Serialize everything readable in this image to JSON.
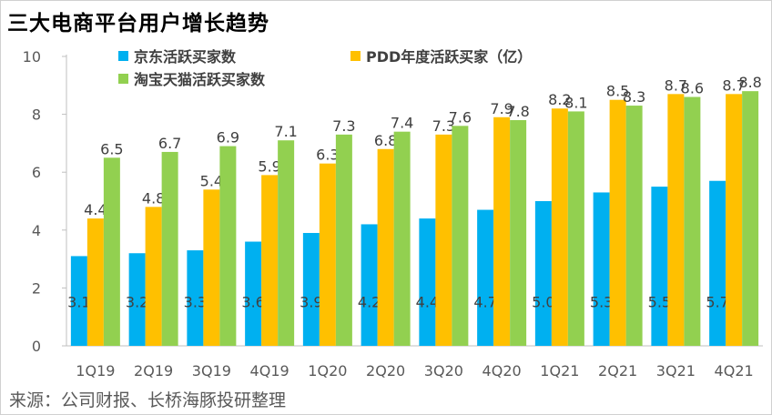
{
  "chart_data": {
    "type": "bar",
    "title": "三大电商平台用户增长趋势",
    "categories": [
      "1Q19",
      "2Q19",
      "3Q19",
      "4Q19",
      "1Q20",
      "2Q20",
      "3Q20",
      "4Q20",
      "1Q21",
      "2Q21",
      "3Q21",
      "4Q21"
    ],
    "series": [
      {
        "name": "京东活跃买家数",
        "color": "#00b0f0",
        "values": [
          3.1,
          3.2,
          3.3,
          3.6,
          3.9,
          4.2,
          4.4,
          4.7,
          5.0,
          5.3,
          5.5,
          5.7
        ],
        "labels": [
          "3.1",
          "3.2",
          "3.3",
          "3.6",
          "3.9",
          "4.2",
          "4.4",
          "4.7",
          "5.0",
          "5.3",
          "5.5",
          "5.7"
        ]
      },
      {
        "name": "PDD年度活跃买家（亿）",
        "color": "#ffc000",
        "values": [
          4.4,
          4.8,
          5.4,
          5.9,
          6.3,
          6.8,
          7.3,
          7.9,
          8.2,
          8.5,
          8.7,
          8.7
        ],
        "labels": [
          "4.4",
          "4.8",
          "5.4",
          "5.9",
          "6.3",
          "6.8",
          "7.3",
          "7.9",
          "8.2",
          "8.5",
          "8.7",
          "8.7"
        ]
      },
      {
        "name": "淘宝天猫活跃买家数",
        "color": "#92d050",
        "values": [
          6.5,
          6.7,
          6.9,
          7.1,
          7.3,
          7.4,
          7.6,
          7.8,
          8.1,
          8.3,
          8.6,
          8.8
        ],
        "labels": [
          "6.5",
          "6.7",
          "6.9",
          "7.1",
          "7.3",
          "7.4",
          "7.6",
          "7.8",
          "8.1",
          "8.3",
          "8.6",
          "8.8"
        ]
      }
    ],
    "yticks": [
      "0",
      "2",
      "4",
      "6",
      "8",
      "10"
    ],
    "ylim": [
      0,
      10
    ],
    "legend": "top"
  },
  "source": "来源：公司财报、长桥海豚投研整理"
}
